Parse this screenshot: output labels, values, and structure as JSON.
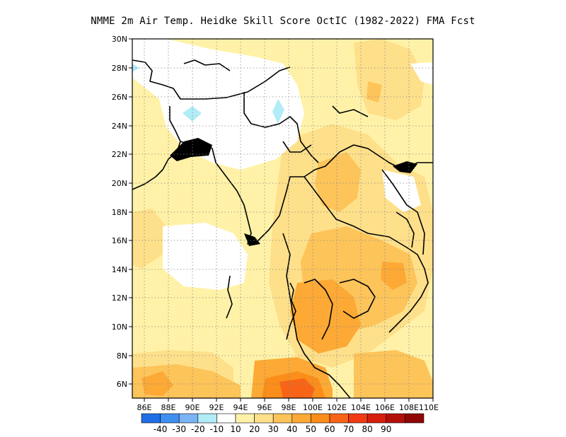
{
  "title": "NMME  2m Air Temp. Heidke Skill Score OctIC (1982-2022) FMA Fcst",
  "map": {
    "lat_ticks": [
      "30N",
      "28N",
      "26N",
      "24N",
      "22N",
      "20N",
      "18N",
      "16N",
      "14N",
      "12N",
      "10N",
      "8N",
      "6N"
    ],
    "lon_ticks": [
      "86E",
      "88E",
      "90E",
      "92E",
      "94E",
      "96E",
      "98E",
      "100E",
      "102E",
      "104E",
      "106E",
      "108E",
      "110E"
    ],
    "lat_range": [
      5,
      30
    ],
    "lon_range": [
      85,
      110
    ],
    "grid": "dotted",
    "regions": [
      {
        "name": "pale-yellow-background",
        "level": 10
      },
      {
        "name": "northwest-white-area",
        "level": 0
      },
      {
        "name": "bay-of-bengal-white-area",
        "level": 0
      },
      {
        "name": "light-orange-central",
        "level": 20
      },
      {
        "name": "orange-thailand-cambodia",
        "level": 30
      },
      {
        "name": "orange-gulf-of-thailand",
        "level": 40
      },
      {
        "name": "red-orange-malay-peninsula",
        "level": 60
      },
      {
        "name": "light-blue-patches",
        "level": -10
      }
    ]
  },
  "colorbar": {
    "colors": [
      "#1f6ee6",
      "#3f8ff0",
      "#7ab4f5",
      "#b1ecf7",
      "#ffffff",
      "#fff2a8",
      "#fee08a",
      "#fdc45a",
      "#fca935",
      "#fb8d1a",
      "#f86417",
      "#f13a13",
      "#d61f0e",
      "#b4100b",
      "#900605"
    ],
    "labels": [
      "-40",
      "-30",
      "-20",
      "-10",
      "10",
      "20",
      "30",
      "40",
      "50",
      "60",
      "70",
      "80",
      "90"
    ]
  }
}
